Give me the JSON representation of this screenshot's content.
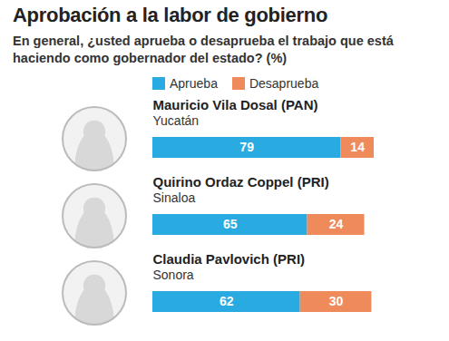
{
  "chart_data": {
    "type": "bar",
    "orientation": "horizontal",
    "stacked": true,
    "data_labels": true,
    "tick_labels": false,
    "title": "Aprobación a la labor de gobierno",
    "subtitle": "En general, ¿usted aprueba o desaprueba el trabajo que está haciendo como gobernador del estado? (%)",
    "categories": [
      "Mauricio Vila Dosal (PAN)",
      "Quirino Ordaz Coppel (PRI)",
      "Claudia Pavlovich (PRI)"
    ],
    "states": [
      "Yucatán",
      "Sinaloa",
      "Sonora"
    ],
    "series": [
      {
        "name": "Aprueba",
        "color": "#29abe2",
        "values": [
          79,
          65,
          62
        ]
      },
      {
        "name": "Desaprueba",
        "color": "#ef8a5a",
        "values": [
          14,
          24,
          30
        ]
      }
    ],
    "legend": "top"
  }
}
